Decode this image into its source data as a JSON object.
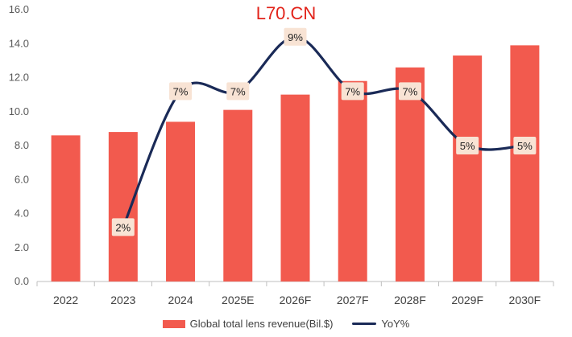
{
  "watermark": "L70.CN",
  "colors": {
    "bar": "#f25a4e",
    "line": "#1a2a57",
    "label_bg": "#f8e3d4",
    "axis": "#bfbfbf"
  },
  "chart_data": {
    "type": "bar",
    "categories": [
      "2022",
      "2023",
      "2024",
      "2025E",
      "2026F",
      "2027F",
      "2028F",
      "2029F",
      "2030F"
    ],
    "ylim": [
      0,
      16
    ],
    "yticks": [
      "0.0",
      "2.0",
      "4.0",
      "6.0",
      "8.0",
      "10.0",
      "12.0",
      "14.0",
      "16.0"
    ],
    "series": [
      {
        "name": "Global total lens revenue(Bil.$)",
        "type": "bar",
        "values": [
          8.6,
          8.8,
          9.4,
          10.1,
          11.0,
          11.8,
          12.6,
          13.3,
          13.9
        ]
      },
      {
        "name": "YoY%",
        "type": "line",
        "values": [
          null,
          2,
          7,
          7,
          9,
          7,
          7,
          5,
          5
        ],
        "labels": [
          "",
          "2%",
          "7%",
          "7%",
          "9%",
          "7%",
          "7%",
          "5%",
          "5%"
        ]
      }
    ],
    "grid": false,
    "legend_position": "bottom"
  }
}
